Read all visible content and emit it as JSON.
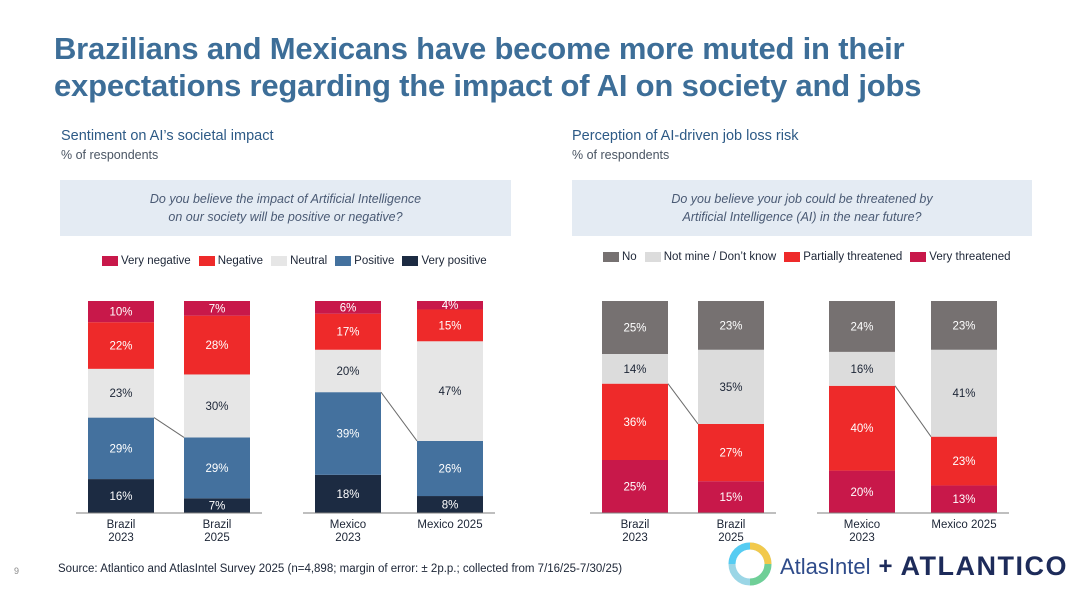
{
  "page": {
    "title_line1": "Brazilians and Mexicans have become more muted in their",
    "title_line2": "expectations regarding the impact of AI on society and jobs",
    "page_number": "9",
    "source": "Source: Atlantico and AtlasIntel Survey 2025 (n=4,898; margin of error: ± 2p.p.; collected from 7/16/25-7/30/25)",
    "logos": {
      "atlasintel": "AtlasIntel",
      "plus": "+",
      "atlantico": "ATLANTICO"
    }
  },
  "left_panel": {
    "title": "Sentiment on AI’s societal impact",
    "unit": "% of respondents",
    "question_line1": "Do you believe the impact of Artificial Intelligence",
    "question_line2": "on our society will be positive or negative?",
    "legend": [
      {
        "label": "Very negative",
        "color": "#c8184a"
      },
      {
        "label": "Negative",
        "color": "#ee2a2a"
      },
      {
        "label": "Neutral",
        "color": "#e6e6e6"
      },
      {
        "label": "Positive",
        "color": "#44719e"
      },
      {
        "label": "Very positive",
        "color": "#1c2b42"
      }
    ]
  },
  "right_panel": {
    "title": "Perception of AI-driven job loss risk",
    "unit": "% of respondents",
    "question_line1": "Do you believe your job could be threatened by",
    "question_line2": "Artificial Intelligence (AI) in the near future?",
    "legend": [
      {
        "label": "No",
        "color": "#767171"
      },
      {
        "label": "Not mine / Don’t know",
        "color": "#dcdcdc"
      },
      {
        "label": "Partially threatened",
        "color": "#ee2a2a"
      },
      {
        "label": "Very threatened",
        "color": "#c8184a"
      }
    ]
  },
  "chart_data": [
    {
      "type": "bar",
      "stacked": true,
      "title": "Sentiment on AI’s societal impact",
      "unit": "% of respondents",
      "categories": [
        [
          "Brazil",
          "2023"
        ],
        [
          "Brazil",
          "2025"
        ],
        [
          "Mexico",
          "2023"
        ],
        [
          "Mexico 2025"
        ]
      ],
      "series": [
        {
          "name": "Very positive",
          "color": "#1c2b42",
          "values": [
            16,
            7,
            18,
            8
          ]
        },
        {
          "name": "Positive",
          "color": "#44719e",
          "values": [
            29,
            29,
            39,
            26
          ]
        },
        {
          "name": "Neutral",
          "color": "#e6e6e6",
          "values": [
            23,
            30,
            20,
            47
          ]
        },
        {
          "name": "Negative",
          "color": "#ee2a2a",
          "values": [
            22,
            28,
            17,
            15
          ]
        },
        {
          "name": "Very negative",
          "color": "#c8184a",
          "values": [
            10,
            7,
            6,
            4
          ]
        }
      ],
      "ylim": [
        0,
        100
      ]
    },
    {
      "type": "bar",
      "stacked": true,
      "title": "Perception of AI-driven job loss risk",
      "unit": "% of respondents",
      "categories": [
        [
          "Brazil",
          "2023"
        ],
        [
          "Brazil",
          "2025"
        ],
        [
          "Mexico",
          "2023"
        ],
        [
          "Mexico 2025"
        ]
      ],
      "series": [
        {
          "name": "Very threatened",
          "color": "#c8184a",
          "values": [
            25,
            15,
            20,
            13
          ]
        },
        {
          "name": "Partially threatened",
          "color": "#ee2a2a",
          "values": [
            36,
            27,
            40,
            23
          ]
        },
        {
          "name": "Not mine / Don’t know",
          "color": "#dcdcdc",
          "values": [
            14,
            35,
            16,
            41
          ]
        },
        {
          "name": "No",
          "color": "#767171",
          "values": [
            25,
            23,
            24,
            23
          ]
        }
      ],
      "ylim": [
        0,
        100
      ]
    }
  ]
}
